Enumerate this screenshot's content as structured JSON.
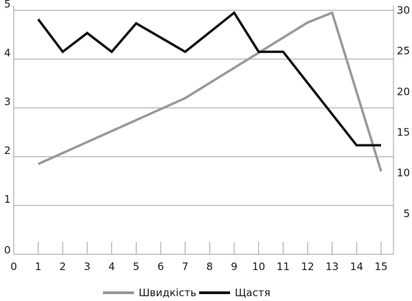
{
  "chart_data": {
    "type": "line",
    "title": "",
    "xlabel": "",
    "ylabel_left": "",
    "ylabel_right": "",
    "x_ticks": [
      "0",
      "1",
      "2",
      "3",
      "4",
      "5",
      "6",
      "7",
      "8",
      "9",
      "10",
      "11",
      "12",
      "13",
      "14",
      "15"
    ],
    "x_range": [
      0,
      15
    ],
    "y_left_range": [
      0,
      5
    ],
    "y_left_ticks": [
      "0",
      "1",
      "2",
      "3",
      "4",
      "5"
    ],
    "y_right_range": [
      0,
      30
    ],
    "y_right_ticks": [
      "5",
      "10",
      "15",
      "20",
      "25",
      "30"
    ],
    "grid": "horizontal",
    "legend_position": "bottom",
    "series": [
      {
        "name": "Швидкість",
        "axis": "left",
        "color": "#999999",
        "x": [
          1,
          7,
          12,
          13,
          15
        ],
        "y": [
          1.85,
          3.2,
          4.75,
          4.95,
          1.7
        ]
      },
      {
        "name": "Щастя",
        "axis": "right",
        "color": "#111111",
        "x": [
          1,
          2,
          3,
          4,
          5,
          7,
          9,
          10,
          11,
          14,
          15
        ],
        "y": [
          28.9,
          24.9,
          27.2,
          24.9,
          28.4,
          24.9,
          29.7,
          24.9,
          24.9,
          13.4,
          13.4
        ]
      }
    ]
  }
}
